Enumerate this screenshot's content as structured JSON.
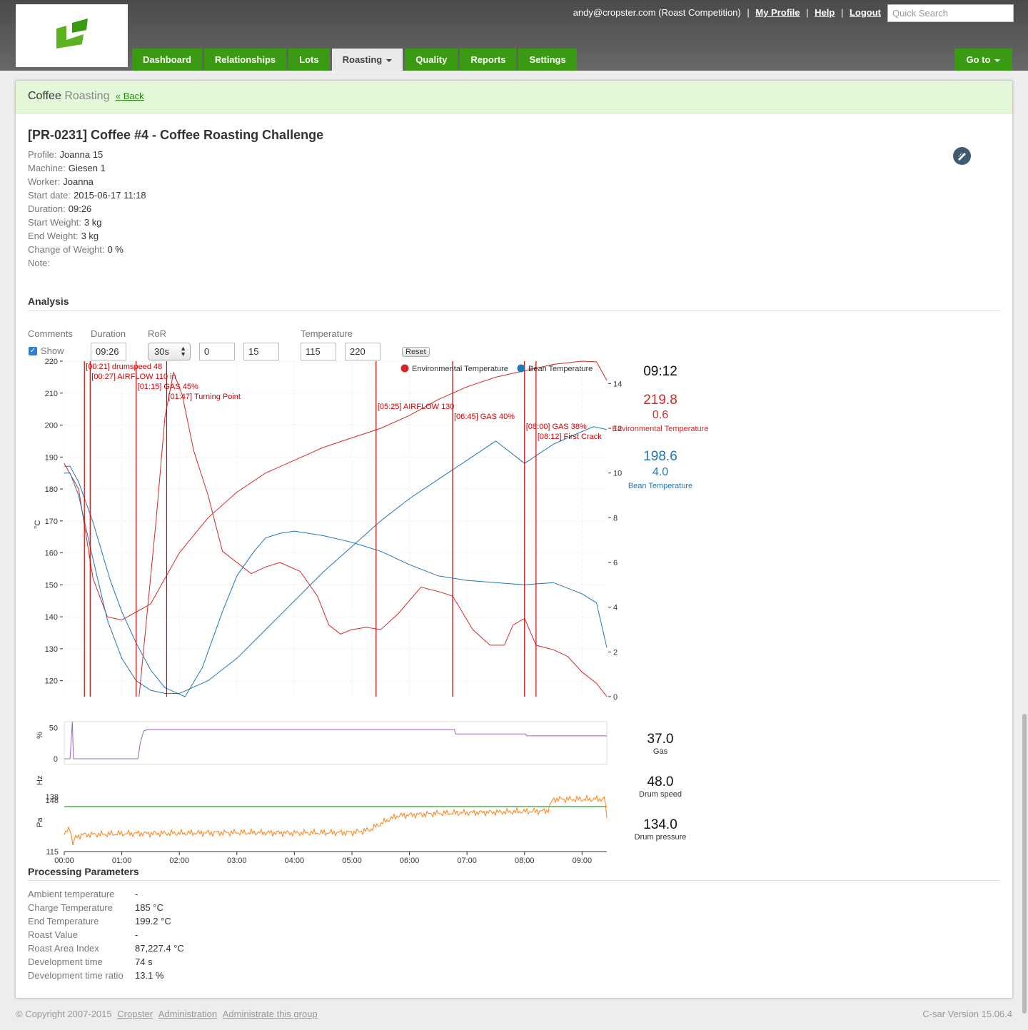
{
  "header": {
    "user": "andy@cropster.com (Roast Competition)",
    "links": [
      "My Profile",
      "Help",
      "Logout"
    ],
    "search_placeholder": "Quick Search",
    "tabs": [
      {
        "label": "Dashboard",
        "active": false
      },
      {
        "label": "Relationships",
        "active": false
      },
      {
        "label": "Lots",
        "active": false
      },
      {
        "label": "Roasting",
        "active": true
      },
      {
        "label": "Quality",
        "active": false
      },
      {
        "label": "Reports",
        "active": false
      },
      {
        "label": "Settings",
        "active": false
      }
    ],
    "goto": "Go to"
  },
  "breadcrumb": {
    "main": "Coffee",
    "sub": "Roasting",
    "back": "« Back"
  },
  "title": "[PR-0231] Coffee #4 - Coffee Roasting Challenge",
  "meta": [
    {
      "k": "Profile:",
      "v": "Joanna 15"
    },
    {
      "k": "Machine:",
      "v": "Giesen 1"
    },
    {
      "k": "Worker:",
      "v": "Joanna"
    },
    {
      "k": "Start date:",
      "v": "2015-06-17 11:18"
    },
    {
      "k": "Duration:",
      "v": "09:26"
    },
    {
      "k": "Start Weight:",
      "v": "3 kg"
    },
    {
      "k": "End Weight:",
      "v": "3 kg"
    },
    {
      "k": "Change of Weight:",
      "v": "0 %"
    },
    {
      "k": "Note:",
      "v": ""
    }
  ],
  "analysis": {
    "heading": "Analysis",
    "labels": {
      "comments": "Comments",
      "duration": "Duration",
      "ror": "RoR",
      "temperature": "Temperature"
    },
    "show_label": "Show",
    "show_checked": true,
    "duration_value": "09:26",
    "ror_value": "30s",
    "ror_min": "0",
    "ror_max": "15",
    "temp_min": "115",
    "temp_max": "220",
    "reset": "Reset"
  },
  "readouts": {
    "time": "09:12",
    "env_temp": "219.8",
    "env_ror": "0.6",
    "env_label": "Environmental Temperature",
    "bean_temp": "198.6",
    "bean_ror": "4.0",
    "bean_label": "Bean Temperature",
    "gas": "37.0",
    "gas_label": "Gas",
    "drum_speed": "48.0",
    "drum_speed_label": "Drum speed",
    "drum_pressure": "134.0",
    "drum_pressure_label": "Drum pressure"
  },
  "colors": {
    "env": "#d62728",
    "bean": "#1f77b4",
    "gas": "#9467bd",
    "drum_speed": "#2ca02c",
    "drum_pressure": "#ff7f0e",
    "accent": "#3a9b12"
  },
  "chart_data": [
    {
      "type": "line",
      "ylabel": "°C",
      "ylim": [
        115,
        220
      ],
      "y2lim": [
        0,
        15
      ],
      "xlim_min": [
        0,
        9.43
      ],
      "yticks": [
        120,
        130,
        140,
        150,
        160,
        170,
        180,
        190,
        200,
        210,
        220
      ],
      "y2ticks": [
        0,
        2,
        4,
        6,
        8,
        10,
        12,
        14
      ],
      "legend": [
        "Environmental Temperature",
        "Bean Temperature"
      ],
      "legend_position": "top-right",
      "annotations": [
        {
          "t": 0.35,
          "label": "[00:21] drumspeed 48"
        },
        {
          "t": 0.45,
          "label": "[00:27] AIRFLOW 110 in"
        },
        {
          "t": 1.25,
          "label": "[01:15] GAS 45%"
        },
        {
          "t": 1.78,
          "label": "[01:47] Turning Point"
        },
        {
          "t": 5.42,
          "label": "[05:25] AIRFLOW 130"
        },
        {
          "t": 6.75,
          "label": "[06:45] GAS 40%"
        },
        {
          "t": 8.0,
          "label": "[08:00] GAS 38%"
        },
        {
          "t": 8.2,
          "label": "[08:12] First Crack"
        }
      ],
      "series": [
        {
          "name": "Environmental Temperature",
          "axis": "left",
          "t": [
            0,
            0.25,
            0.5,
            0.75,
            1.0,
            1.5,
            2.0,
            2.5,
            3.0,
            3.5,
            4.0,
            4.5,
            5.0,
            5.5,
            6.0,
            6.5,
            7.0,
            7.5,
            8.0,
            8.5,
            9.0,
            9.25,
            9.43
          ],
          "y": [
            188,
            180,
            152,
            140,
            139,
            144,
            160,
            171,
            179,
            185,
            189,
            193,
            196,
            199,
            203,
            208,
            212,
            215,
            217,
            219,
            220,
            219.8,
            214
          ]
        },
        {
          "name": "Bean Temperature",
          "axis": "left",
          "t": [
            0,
            0.1,
            0.25,
            0.5,
            0.75,
            1.0,
            1.25,
            1.5,
            1.75,
            2.0,
            2.5,
            3.0,
            3.5,
            4.0,
            4.5,
            5.0,
            5.5,
            6.0,
            6.5,
            7.0,
            7.5,
            8.0,
            8.5,
            9.0,
            9.2,
            9.43
          ],
          "y": [
            185,
            185,
            178,
            158,
            139,
            127,
            120,
            117,
            116,
            116,
            120,
            127,
            136,
            145,
            154,
            162,
            170,
            177,
            183,
            189,
            195,
            188,
            194,
            198,
            199.5,
            198.6
          ]
        },
        {
          "name": "Environmental Temperature RoR",
          "axis": "right",
          "t": [
            1.3,
            1.6,
            1.75,
            1.9,
            2.05,
            2.25,
            2.5,
            2.75,
            3.25,
            3.5,
            3.75,
            4.1,
            4.4,
            4.6,
            4.8,
            5.0,
            5.25,
            5.5,
            5.8,
            6.2,
            6.5,
            6.75,
            7.1,
            7.4,
            7.65,
            7.8,
            8.0,
            8.2,
            8.5,
            8.75,
            9.0,
            9.25,
            9.43
          ],
          "y": [
            0,
            8,
            12.5,
            14.5,
            13.5,
            11,
            9,
            6.5,
            5.5,
            5.8,
            6,
            5.6,
            4.5,
            3.2,
            2.8,
            3,
            3.1,
            3,
            3.7,
            4.9,
            4.7,
            4.5,
            3,
            2.3,
            2.3,
            3.2,
            3.5,
            2.3,
            2.1,
            1.8,
            1.1,
            0.6,
            0
          ]
        },
        {
          "name": "Bean Temperature RoR",
          "axis": "right",
          "t": [
            0,
            0.1,
            0.25,
            0.5,
            0.8,
            1.0,
            1.25,
            1.5,
            1.75,
            2.1,
            2.4,
            2.75,
            3.0,
            3.3,
            3.5,
            3.75,
            4.0,
            4.5,
            5.0,
            5.5,
            6.0,
            6.5,
            7.0,
            7.5,
            8.0,
            8.5,
            9.0,
            9.25,
            9.43
          ],
          "y": [
            10.3,
            10.3,
            9.6,
            7.8,
            5.2,
            3.8,
            2.4,
            1.2,
            0.4,
            0,
            1.3,
            3.8,
            5.4,
            6.5,
            7.1,
            7.3,
            7.4,
            7.2,
            6.9,
            6.5,
            5.9,
            5.4,
            5.2,
            5.1,
            5,
            5.1,
            4.6,
            4.2,
            2.2
          ]
        }
      ]
    },
    {
      "type": "line",
      "ylabel": "%",
      "yticks": [
        0,
        50
      ],
      "series": [
        {
          "name": "Gas",
          "t": [
            0,
            0.1,
            0.14,
            0.16,
            1.28,
            1.32,
            1.38,
            1.44,
            6.78,
            6.8,
            8.02,
            8.04,
            9.43
          ],
          "y": [
            0,
            0,
            60,
            0,
            0,
            25,
            45,
            47,
            47,
            40,
            40,
            37,
            37
          ]
        }
      ]
    },
    {
      "type": "line",
      "ylabel": "Hz",
      "series": [
        {
          "name": "Drum speed",
          "t": [
            0,
            9.43
          ],
          "y": [
            48,
            48
          ]
        }
      ]
    },
    {
      "type": "line",
      "ylabel": "Pa",
      "yticks": [
        115,
        138
      ],
      "xticks": [
        "00:00",
        "01:00",
        "02:00",
        "03:00",
        "04:00",
        "05:00",
        "06:00",
        "07:00",
        "08:00",
        "09:00"
      ],
      "series": [
        {
          "name": "Drum pressure",
          "t": [
            0,
            0.1,
            0.15,
            0.2,
            0.3,
            1,
            2,
            3,
            4,
            5,
            5.3,
            5.6,
            5.8,
            6.5,
            7.5,
            8.4,
            8.5,
            9,
            9.4,
            9.43
          ],
          "y": [
            122,
            125,
            118,
            121,
            122,
            122.5,
            122.7,
            123,
            122.8,
            123,
            124,
            128,
            130,
            131,
            131.5,
            132,
            137,
            136.8,
            137,
            128
          ]
        }
      ]
    }
  ],
  "processing": {
    "heading": "Processing Parameters",
    "rows": [
      {
        "k": "Ambient temperature",
        "v": "-"
      },
      {
        "k": "Charge Temperature",
        "v": "185 °C"
      },
      {
        "k": "End Temperature",
        "v": "199.2 °C"
      },
      {
        "k": "Roast Value",
        "v": "-"
      },
      {
        "k": "Roast Area Index",
        "v": "87,227.4 °C"
      },
      {
        "k": "Development time",
        "v": "74 s"
      },
      {
        "k": "Development time ratio",
        "v": "13.1 %"
      }
    ]
  },
  "footer": {
    "copyright": "© Copyright 2007-2015",
    "links": [
      "Cropster",
      "Administration",
      "Administrate this group"
    ],
    "version": "C-sar Version 15.06.4"
  }
}
